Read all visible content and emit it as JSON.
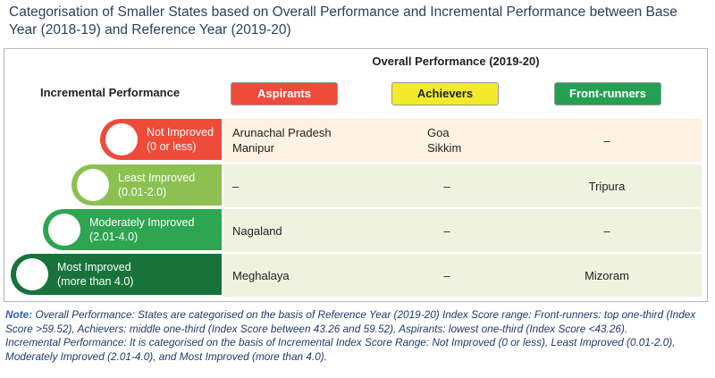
{
  "title": "Categorisation of Smaller States based on Overall Performance and Incremental Performance between Base Year (2018-19) and Reference Year (2019-20)",
  "table": {
    "column_group": "Overall Performance (2019-20)",
    "row_header": "Incremental Performance",
    "columns": [
      "Aspirants",
      "Achievers",
      "Front-runners"
    ],
    "rows": [
      {
        "label": "Not Improved",
        "range": "(0 or less)",
        "cells": [
          [
            "Arunachal Pradesh",
            "Manipur"
          ],
          [
            "Goa",
            "Sikkim"
          ],
          [
            "–"
          ]
        ]
      },
      {
        "label": "Least Improved",
        "range": "(0.01-2.0)",
        "cells": [
          [
            "–"
          ],
          [
            "–"
          ],
          [
            "Tripura"
          ]
        ]
      },
      {
        "label": "Moderately Improved",
        "range": "(2.01-4.0)",
        "cells": [
          [
            "Nagaland"
          ],
          [
            "–"
          ],
          [
            "–"
          ]
        ]
      },
      {
        "label": "Most Improved",
        "range": "(more than 4.0)",
        "cells": [
          [
            "Meghalaya"
          ],
          [
            "–"
          ],
          [
            "Mizoram"
          ]
        ]
      }
    ]
  },
  "notes": {
    "label": "Note:",
    "lines": [
      "Overall Performance: States are categorised on the basis of Reference Year (2019-20) Index Score range: Front-runners: top one-third (Index Score >59.52), Achievers: middle one-third (Index Score between 43.26 and 59.52), Aspirants: lowest one-third (Index Score <43.26).",
      "Incremental Performance: It is categorised on the basis of Incremental Index Score Range: Not Improved (0 or less), Least Improved (0.01-2.0), Moderately Improved (2.01-4.0), and Most Improved (more than 4.0)."
    ]
  }
}
